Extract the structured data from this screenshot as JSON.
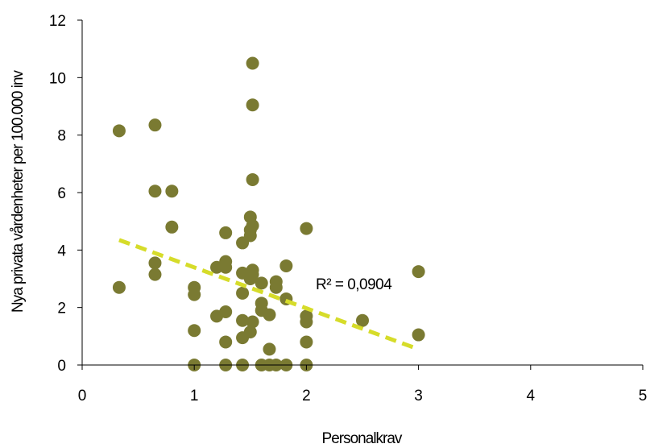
{
  "chart_data": {
    "type": "scatter",
    "title": "",
    "xlabel": "Personalkrav",
    "ylabel": "Nya privata vårdenheter per 100.000 inv",
    "xlim": [
      0,
      5
    ],
    "ylim": [
      0,
      12
    ],
    "x_ticks": [
      "0",
      "1",
      "2",
      "3",
      "4",
      "5"
    ],
    "y_ticks": [
      "0",
      "2",
      "4",
      "6",
      "8",
      "10",
      "12"
    ],
    "grid": false,
    "legend": "none",
    "marker_color": "#7a7a32",
    "trendline_color": "#d6dc2a",
    "annotation": "R² = 0,0904",
    "trendline": {
      "type": "linear",
      "from": [
        0.33,
        4.35
      ],
      "to": [
        3.0,
        0.55
      ]
    },
    "series": [
      {
        "points": [
          [
            0.33,
            8.15
          ],
          [
            0.33,
            2.7
          ],
          [
            0.65,
            8.35
          ],
          [
            0.65,
            6.05
          ],
          [
            0.65,
            3.55
          ],
          [
            0.65,
            3.15
          ],
          [
            0.8,
            6.05
          ],
          [
            0.8,
            4.8
          ],
          [
            1.0,
            2.7
          ],
          [
            1.0,
            2.45
          ],
          [
            1.0,
            1.2
          ],
          [
            1.0,
            0.0
          ],
          [
            1.2,
            3.4
          ],
          [
            1.2,
            1.7
          ],
          [
            1.28,
            4.6
          ],
          [
            1.28,
            3.6
          ],
          [
            1.28,
            3.4
          ],
          [
            1.28,
            1.85
          ],
          [
            1.28,
            0.8
          ],
          [
            1.28,
            0.0
          ],
          [
            1.43,
            4.25
          ],
          [
            1.43,
            3.2
          ],
          [
            1.43,
            2.5
          ],
          [
            1.43,
            1.55
          ],
          [
            1.43,
            0.95
          ],
          [
            1.43,
            0.0
          ],
          [
            1.5,
            5.15
          ],
          [
            1.5,
            4.7
          ],
          [
            1.5,
            4.5
          ],
          [
            1.5,
            3.0
          ],
          [
            1.5,
            1.15
          ],
          [
            1.52,
            10.5
          ],
          [
            1.52,
            9.05
          ],
          [
            1.52,
            6.45
          ],
          [
            1.52,
            4.85
          ],
          [
            1.52,
            3.3
          ],
          [
            1.52,
            3.15
          ],
          [
            1.52,
            1.5
          ],
          [
            1.6,
            2.85
          ],
          [
            1.6,
            2.15
          ],
          [
            1.6,
            1.9
          ],
          [
            1.6,
            0.0
          ],
          [
            1.67,
            1.75
          ],
          [
            1.67,
            0.55
          ],
          [
            1.67,
            0.0
          ],
          [
            1.73,
            2.9
          ],
          [
            1.73,
            2.7
          ],
          [
            1.73,
            0.0
          ],
          [
            1.82,
            3.45
          ],
          [
            1.82,
            2.3
          ],
          [
            1.82,
            0.0
          ],
          [
            2.0,
            4.75
          ],
          [
            2.0,
            1.7
          ],
          [
            2.0,
            1.5
          ],
          [
            2.0,
            0.8
          ],
          [
            2.0,
            0.0
          ],
          [
            2.5,
            1.55
          ],
          [
            3.0,
            3.25
          ],
          [
            3.0,
            1.05
          ]
        ]
      }
    ]
  }
}
